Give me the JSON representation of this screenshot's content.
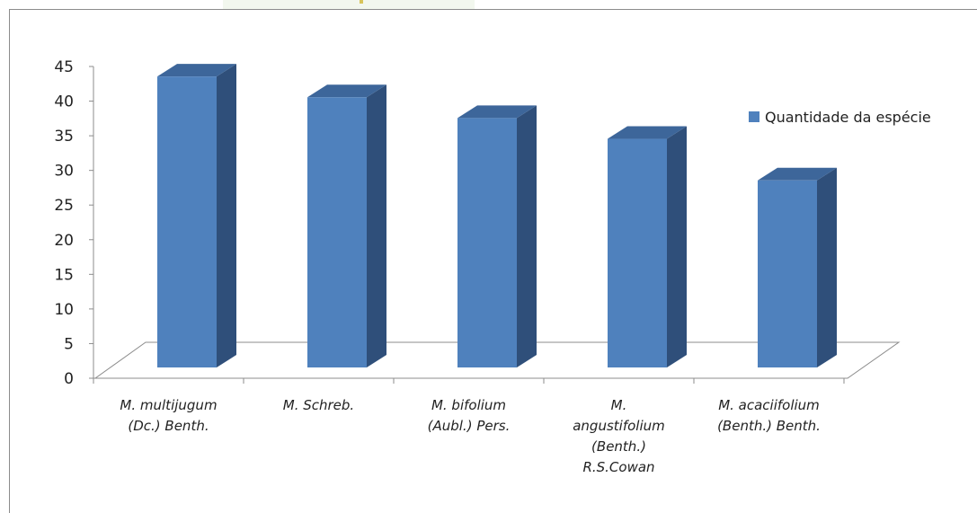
{
  "chart_data": {
    "type": "bar",
    "categories": [
      [
        "M. multijugum",
        "(Dc.) Benth."
      ],
      [
        "M. Schreb."
      ],
      [
        "M. bifolium",
        "(Aubl.) Pers."
      ],
      [
        "M.",
        "angustifolium",
        "(Benth.)",
        "R.S.Cowan"
      ],
      [
        "M. acaciifolium",
        "(Benth.) Benth."
      ]
    ],
    "series": [
      {
        "name": "Quantidade da espécie",
        "values": [
          42,
          39,
          36,
          33,
          27
        ]
      }
    ],
    "ylim": [
      0,
      45
    ],
    "yticks": [
      0,
      5,
      10,
      15,
      20,
      25,
      30,
      35,
      40,
      45
    ],
    "legend_position": "right",
    "grid": false,
    "colors": {
      "front": "#4f81bd",
      "side": "#2f4f7a",
      "top": "#3d669a",
      "floor": "#ffffff",
      "axis": "#8c8c8c"
    }
  }
}
